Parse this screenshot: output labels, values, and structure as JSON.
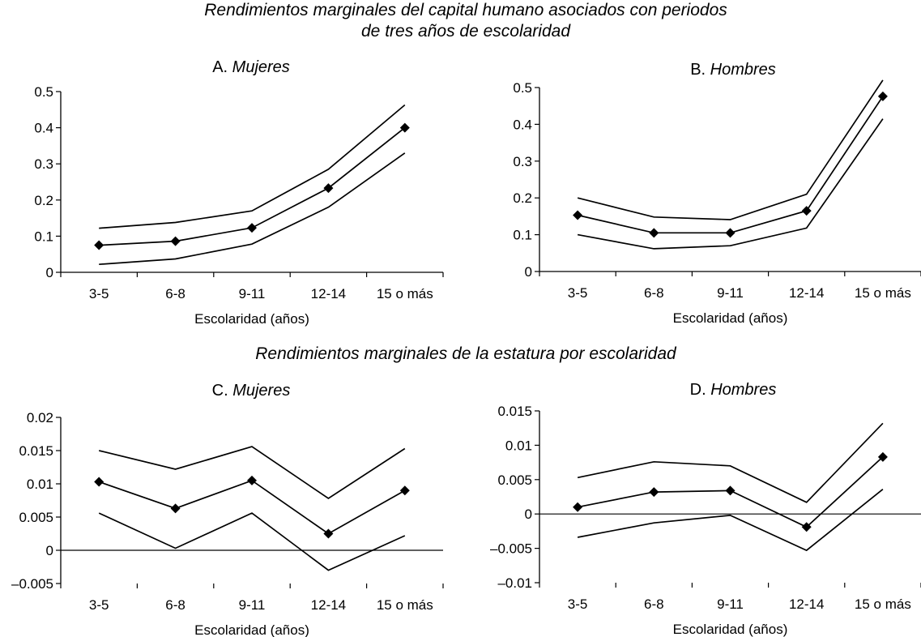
{
  "section_titles": {
    "top_line1": "Rendimientos marginales del capital humano asociados con periodos",
    "top_line2": "de tres años de escolaridad",
    "bottom": "Rendimientos marginales de la estatura por escolaridad"
  },
  "chart_data": [
    {
      "type": "line",
      "letter": "A.",
      "group": "Mujeres",
      "xlabel": "Escolaridad (años)",
      "categories": [
        "3-5",
        "6-8",
        "9-11",
        "12-14",
        "15 o más"
      ],
      "yticks": [
        "0",
        "0.1",
        "0.2",
        "0.3",
        "0.4",
        "0.5"
      ],
      "ylim": [
        0,
        0.5
      ],
      "series": [
        {
          "name": "upper",
          "values": [
            0.122,
            0.138,
            0.17,
            0.285,
            0.463
          ]
        },
        {
          "name": "estimate",
          "markers": true,
          "values": [
            0.075,
            0.086,
            0.123,
            0.233,
            0.4
          ]
        },
        {
          "name": "lower",
          "values": [
            0.022,
            0.037,
            0.078,
            0.18,
            0.33
          ]
        }
      ]
    },
    {
      "type": "line",
      "letter": "B.",
      "group": "Hombres",
      "xlabel": "Escolaridad (años)",
      "categories": [
        "3-5",
        "6-8",
        "9-11",
        "12-14",
        "15 o más"
      ],
      "yticks": [
        "0",
        "0.1",
        "0.2",
        "0.3",
        "0.4",
        "0.5"
      ],
      "ylim": [
        0,
        0.5
      ],
      "series": [
        {
          "name": "upper",
          "values": [
            0.2,
            0.148,
            0.141,
            0.21,
            0.52
          ]
        },
        {
          "name": "estimate",
          "markers": true,
          "values": [
            0.153,
            0.105,
            0.105,
            0.165,
            0.476
          ]
        },
        {
          "name": "lower",
          "values": [
            0.1,
            0.062,
            0.07,
            0.118,
            0.415
          ]
        }
      ]
    },
    {
      "type": "line",
      "letter": "C.",
      "group": "Mujeres",
      "xlabel": "Escolaridad (años)",
      "categories": [
        "3-5",
        "6-8",
        "9-11",
        "12-14",
        "15 o más"
      ],
      "yticks": [
        "–0.005",
        "0",
        "0.005",
        "0.01",
        "0.015",
        "0.02"
      ],
      "ylim": [
        -0.005,
        0.02
      ],
      "series": [
        {
          "name": "upper",
          "values": [
            0.015,
            0.0122,
            0.0156,
            0.0078,
            0.0153
          ]
        },
        {
          "name": "estimate",
          "markers": true,
          "values": [
            0.0103,
            0.0063,
            0.0105,
            0.0025,
            0.009
          ]
        },
        {
          "name": "lower",
          "values": [
            0.0056,
            0.0003,
            0.0056,
            -0.003,
            0.0022
          ]
        }
      ]
    },
    {
      "type": "line",
      "letter": "D.",
      "group": "Hombres",
      "xlabel": "Escolaridad (años)",
      "categories": [
        "3-5",
        "6-8",
        "9-11",
        "12-14",
        "15 o más"
      ],
      "yticks": [
        "–0.01",
        "–0.005",
        "0",
        "0.005",
        "0.01",
        "0.015"
      ],
      "ylim": [
        -0.01,
        0.015
      ],
      "series": [
        {
          "name": "upper",
          "values": [
            0.0053,
            0.0076,
            0.007,
            0.0017,
            0.0132
          ]
        },
        {
          "name": "estimate",
          "markers": true,
          "values": [
            0.001,
            0.0032,
            0.0034,
            -0.0019,
            0.0083
          ]
        },
        {
          "name": "lower",
          "values": [
            -0.0034,
            -0.0013,
            -0.0002,
            -0.0053,
            0.0036
          ]
        }
      ]
    }
  ]
}
